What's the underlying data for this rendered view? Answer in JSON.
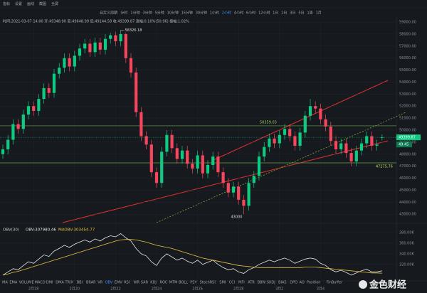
{
  "toolbar": [
    "指标",
    "设置",
    "画线",
    "截图",
    "全屏"
  ],
  "periods": [
    "自定义周期",
    "分时",
    "1分钟",
    "3分钟",
    "5分钟",
    "10分钟",
    "15分钟",
    "30分钟",
    "1小时",
    "2小时",
    "4小时",
    "6小时",
    "12小时",
    "1日",
    "2日",
    "3日",
    "5日",
    "1周",
    "1月"
  ],
  "active_period": 9,
  "ohlc_header": "时间:2021-03-07 14:00 开:49348.90 高:49648.99 低:49144.58 收:49399.87 涨幅:0.10%(50.96) 振幅:1.02%",
  "indicators": [
    "MA",
    "EMA",
    "VOLUME",
    "MACD",
    "DMI",
    "DMA",
    "TRIX",
    "BBI",
    "BRAR",
    "VR",
    "OBV",
    "EMV",
    "RSI",
    "WR",
    "SAR",
    "KDJ",
    "ROC",
    "MTM",
    "BOLL",
    "PSY",
    "StochRSI",
    "SMI",
    "CCI",
    "MFI",
    "ATR",
    "BBW",
    "SKDJ",
    "BIAS",
    "DPO",
    "AO",
    "Position",
    "FinBuffer"
  ],
  "active_indicator": 10,
  "watermark": "金色财经",
  "chart_data": [
    {
      "type": "candlestick",
      "up_color": "#0ecb81",
      "down_color": "#f6465d",
      "grid": true,
      "categories": [
        null,
        null,
        null,
        null,
        null,
        null,
        "2月18",
        null,
        null,
        null,
        null,
        null,
        null,
        null,
        "2月20",
        null,
        null,
        null,
        null,
        null,
        null,
        null,
        "2月22",
        null,
        null,
        null,
        null,
        null,
        null,
        null,
        "2月24",
        null,
        null,
        null,
        null,
        null,
        null,
        null,
        "2月26",
        null,
        null,
        null,
        null,
        null,
        null,
        null,
        "2月28",
        null,
        null,
        null,
        null,
        null,
        null,
        null,
        "3月2",
        null,
        null,
        null,
        null,
        null,
        null,
        null,
        "3月4",
        null,
        null,
        null,
        null,
        null,
        null,
        null,
        null,
        null,
        null,
        null,
        null
      ],
      "open": [
        48000,
        48400,
        49200,
        50500,
        50100,
        51300,
        52000,
        51600,
        52600,
        53500,
        53100,
        54700,
        55200,
        56000,
        55300,
        56200,
        56800,
        57200,
        56500,
        57300,
        56700,
        57600,
        57900,
        57400,
        58000,
        56000,
        54800,
        51500,
        49500,
        48800,
        46500,
        45600,
        48200,
        49600,
        48500,
        47600,
        48300,
        47200,
        46800,
        47900,
        46400,
        47100,
        47800,
        46500,
        45600,
        44800,
        45300,
        44200,
        43700,
        45600,
        46200,
        47800,
        48600,
        49300,
        48900,
        49600,
        50100,
        49500,
        48700,
        49800,
        51200,
        52000,
        51800,
        50900,
        50300,
        49100,
        48400,
        48900,
        48100,
        47400,
        48300,
        48900,
        49500,
        48700,
        49348.9
      ],
      "high": [
        48800,
        49600,
        50900,
        50900,
        51700,
        52400,
        52400,
        53000,
        53900,
        53900,
        55100,
        55600,
        56400,
        56400,
        56600,
        57200,
        57600,
        57600,
        57700,
        57700,
        58000,
        58100,
        58200,
        58326.18,
        58100,
        56400,
        55200,
        51900,
        49900,
        49200,
        46900,
        48600,
        50000,
        50000,
        48900,
        48700,
        48700,
        47600,
        48300,
        48300,
        47500,
        48200,
        48200,
        46900,
        46000,
        45700,
        45700,
        44600,
        46000,
        46600,
        48200,
        49000,
        49700,
        49700,
        50000,
        50500,
        50500,
        49900,
        50200,
        51600,
        52600,
        52400,
        52200,
        51300,
        50700,
        49500,
        49300,
        49300,
        48500,
        48700,
        49300,
        49900,
        49900,
        49200,
        49648.99
      ],
      "low": [
        47600,
        48000,
        48800,
        49700,
        49700,
        50900,
        51200,
        51200,
        52200,
        52700,
        52700,
        54300,
        54800,
        54900,
        54900,
        55800,
        56400,
        56100,
        56100,
        56300,
        56300,
        57200,
        57000,
        57000,
        55600,
        54400,
        51100,
        49100,
        48400,
        46100,
        45200,
        45200,
        47800,
        48100,
        47200,
        47200,
        46800,
        46400,
        46400,
        46000,
        46000,
        46700,
        46100,
        45200,
        44400,
        44400,
        43800,
        43000,
        43300,
        45200,
        45800,
        47400,
        48200,
        48500,
        48500,
        49200,
        49100,
        48300,
        48300,
        49400,
        50800,
        51400,
        50500,
        49900,
        48700,
        48000,
        48000,
        47700,
        47000,
        47000,
        47900,
        48500,
        48300,
        48300,
        49144.58
      ],
      "close": [
        48400,
        49200,
        50500,
        50100,
        51300,
        52000,
        51600,
        52600,
        53500,
        53100,
        54700,
        55200,
        56000,
        55300,
        56200,
        56800,
        57200,
        56500,
        57300,
        56700,
        57600,
        57900,
        57400,
        58000,
        56000,
        54800,
        51500,
        49500,
        48800,
        46500,
        45600,
        48200,
        49600,
        48500,
        47600,
        48300,
        47200,
        46800,
        47900,
        46400,
        47100,
        47800,
        46500,
        45600,
        44800,
        45300,
        44200,
        43700,
        45600,
        46200,
        47800,
        48600,
        49300,
        48900,
        49600,
        50100,
        49500,
        48700,
        49800,
        51200,
        52000,
        51800,
        50900,
        50300,
        49100,
        48400,
        48900,
        48100,
        47400,
        48300,
        48900,
        49500,
        48700,
        48800,
        49399.87
      ],
      "levels": [
        50359.03,
        47275.76
      ],
      "level_colors": [
        "#9ccc65",
        "#c8e06b"
      ],
      "countdown": "49.45",
      "ylim": [
        42300,
        59300
      ],
      "yticks": [
        {
          "value": 59000,
          "label": "59000.00"
        },
        {
          "value": 58000,
          "label": "58000.00"
        },
        {
          "value": 57000,
          "label": "57000.00"
        },
        {
          "value": 56000,
          "label": "56000.00"
        },
        {
          "value": 55000,
          "label": "55000.00"
        },
        {
          "value": 54000,
          "label": "54000.00"
        },
        {
          "value": 53000,
          "label": "53000.00"
        },
        {
          "value": 52000,
          "label": "52000.00"
        },
        {
          "value": 51000,
          "label": "51000.00"
        },
        {
          "value": 50000,
          "label": "50000.00"
        },
        {
          "value": 49000,
          "label": "49000.00"
        },
        {
          "value": 48000,
          "label": "48000.00"
        },
        {
          "value": 47000,
          "label": "47000.00"
        },
        {
          "value": 46000,
          "label": "46000.00"
        },
        {
          "value": 45000,
          "label": "45000.00"
        },
        {
          "value": 44000,
          "label": "44000.00"
        },
        {
          "value": 43000,
          "label": "43000.00"
        }
      ]
    },
    {
      "type": "line",
      "title": "OBV(30)",
      "readouts": [
        "OBV:307980.46",
        "MAOBV:303454.77"
      ],
      "series": [
        {
          "color": "#e8e8e8",
          "values": [
            300,
            306,
            312,
            310,
            318,
            325,
            322,
            330,
            338,
            335,
            345,
            350,
            356,
            352,
            358,
            362,
            366,
            362,
            368,
            364,
            370,
            374,
            372,
            378,
            370,
            364,
            350,
            340,
            336,
            325,
            318,
            332,
            340,
            334,
            328,
            332,
            326,
            322,
            328,
            320,
            324,
            328,
            320,
            314,
            310,
            312,
            306,
            303,
            310,
            314,
            320,
            324,
            328,
            325,
            329,
            332,
            328,
            322,
            326,
            330,
            332,
            330,
            322,
            318,
            310,
            306,
            309,
            305,
            300,
            304,
            308,
            311,
            306,
            306,
            307.98
          ]
        },
        {
          "color": "#e6c245",
          "values": [
            300,
            302,
            305,
            307,
            310,
            313,
            316,
            319,
            322,
            325,
            328,
            331,
            334,
            337,
            340,
            343,
            346,
            349,
            352,
            355,
            358,
            361,
            364,
            366,
            367,
            367,
            366,
            364,
            362,
            359,
            356,
            354,
            352,
            350,
            347,
            344,
            341,
            338,
            335,
            332,
            330,
            328,
            326,
            324,
            322,
            320,
            318,
            317,
            316,
            315,
            314,
            314,
            314,
            314,
            314,
            314,
            314,
            314,
            314,
            315,
            315,
            315,
            314,
            313,
            312,
            311,
            310,
            309,
            308,
            307,
            306,
            305,
            304,
            304,
            303.45
          ]
        }
      ],
      "ylim": [
        289,
        392
      ],
      "yticks": [
        {
          "value": 380,
          "label": "380.00K"
        },
        {
          "value": 360,
          "label": "360.00K"
        },
        {
          "value": 340,
          "label": "340.00K"
        },
        {
          "value": 320,
          "label": "320.00K"
        }
      ]
    }
  ]
}
